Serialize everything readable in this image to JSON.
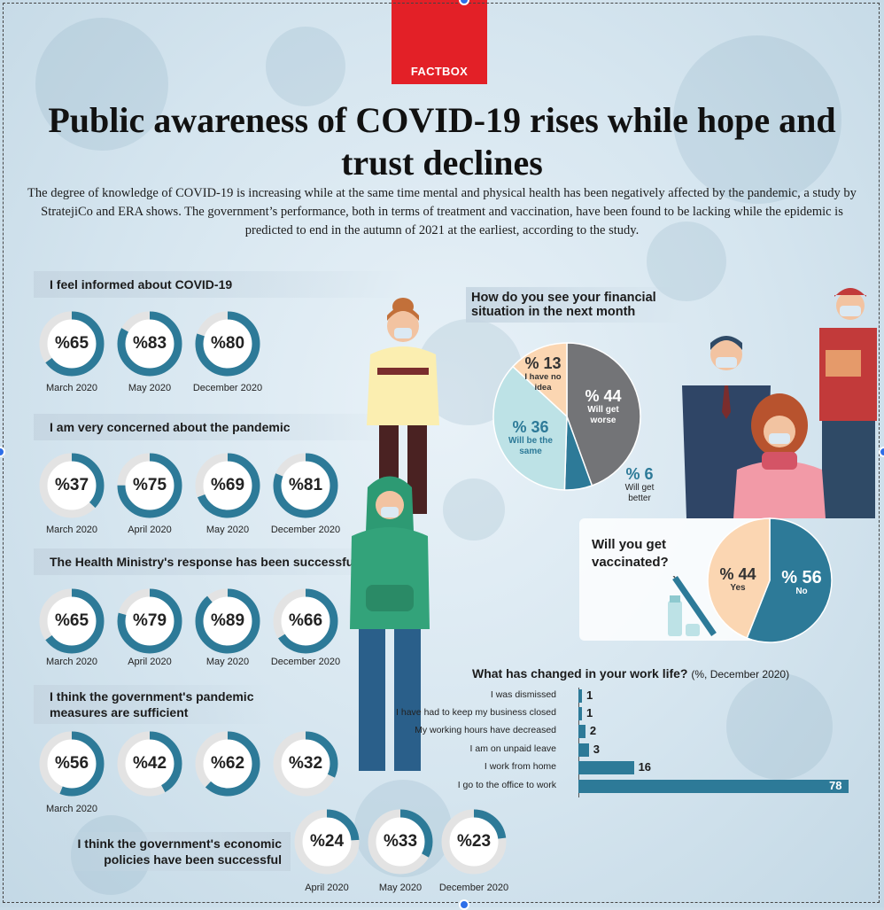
{
  "tag": "FACTBOX",
  "title": "Public awareness of COVID-19 rises while hope and trust declines",
  "intro": "The degree of knowledge of COVID-19 is increasing while at the same time mental and physical health has been negatively affected by the pandemic, a study by StratejiCo and ERA shows. The government’s performance, both in terms of treatment and vaccination, have been found to be lacking while the epidemic is predicted to end in the autumn of 2021 at the earliest, according to the study.",
  "colors": {
    "accent": "#2d7a98",
    "ring_track": "#e3e3e3",
    "tag_bg": "#e32027",
    "pie_peach": "#fbd6b2",
    "pie_grey": "#737477",
    "pie_light": "#bde2e6"
  },
  "chart_data": [
    {
      "type": "donut",
      "title": "I feel informed about COVID-19",
      "categories": [
        "March 2020",
        "May 2020",
        "December 2020"
      ],
      "values": [
        65,
        83,
        80
      ],
      "value_labels": [
        "%65",
        "%83",
        "%80"
      ]
    },
    {
      "type": "donut",
      "title": "I am very concerned about the pandemic",
      "categories": [
        "March 2020",
        "April 2020",
        "May 2020",
        "December 2020"
      ],
      "values": [
        37,
        75,
        69,
        81
      ],
      "value_labels": [
        "%37",
        "%75",
        "%69",
        "%81"
      ]
    },
    {
      "type": "donut",
      "title": "The Health Ministry's response has been successful",
      "categories": [
        "March 2020",
        "April 2020",
        "May 2020",
        "December 2020"
      ],
      "values": [
        65,
        79,
        89,
        66
      ],
      "value_labels": [
        "%65",
        "%79",
        "%89",
        "%66"
      ]
    },
    {
      "type": "donut",
      "title": "I think the government's pandemic measures are sufficient",
      "categories": [
        "March 2020",
        "",
        "",
        ""
      ],
      "values": [
        56,
        42,
        62,
        32
      ],
      "value_labels": [
        "%56",
        "%42",
        "%62",
        "%32"
      ]
    },
    {
      "type": "donut",
      "title": "I think the government's economic policies have been successful",
      "categories": [
        "April 2020",
        "May 2020",
        "December 2020"
      ],
      "values": [
        24,
        33,
        23
      ],
      "value_labels": [
        "%24",
        "%33",
        "%23"
      ]
    },
    {
      "type": "pie",
      "title": "How do you see your financial situation in the next month",
      "slices": [
        {
          "label": "Will get worse",
          "value": 44,
          "pct_label": "% 44"
        },
        {
          "label": "Will get better",
          "value": 6,
          "pct_label": "% 6"
        },
        {
          "label": "Will be the same",
          "value": 36,
          "pct_label": "% 36"
        },
        {
          "label": "I have no idea",
          "value": 13,
          "pct_label": "% 13"
        }
      ]
    },
    {
      "type": "pie",
      "title": "Will you get vaccinated?",
      "slices": [
        {
          "label": "No",
          "value": 56,
          "pct_label": "% 56"
        },
        {
          "label": "Yes",
          "value": 44,
          "pct_label": "% 44"
        }
      ]
    },
    {
      "type": "bar",
      "orientation": "horizontal",
      "title": "What has changed in your work life?",
      "subtitle": "(%, December 2020)",
      "categories": [
        "I was dismissed",
        "I have had to keep my business closed",
        "My working hours have decreased",
        "I am on unpaid leave",
        "I work from home",
        "I go to the office to work"
      ],
      "values": [
        1,
        1,
        2,
        3,
        16,
        78
      ],
      "xlim": [
        0,
        78
      ]
    }
  ]
}
